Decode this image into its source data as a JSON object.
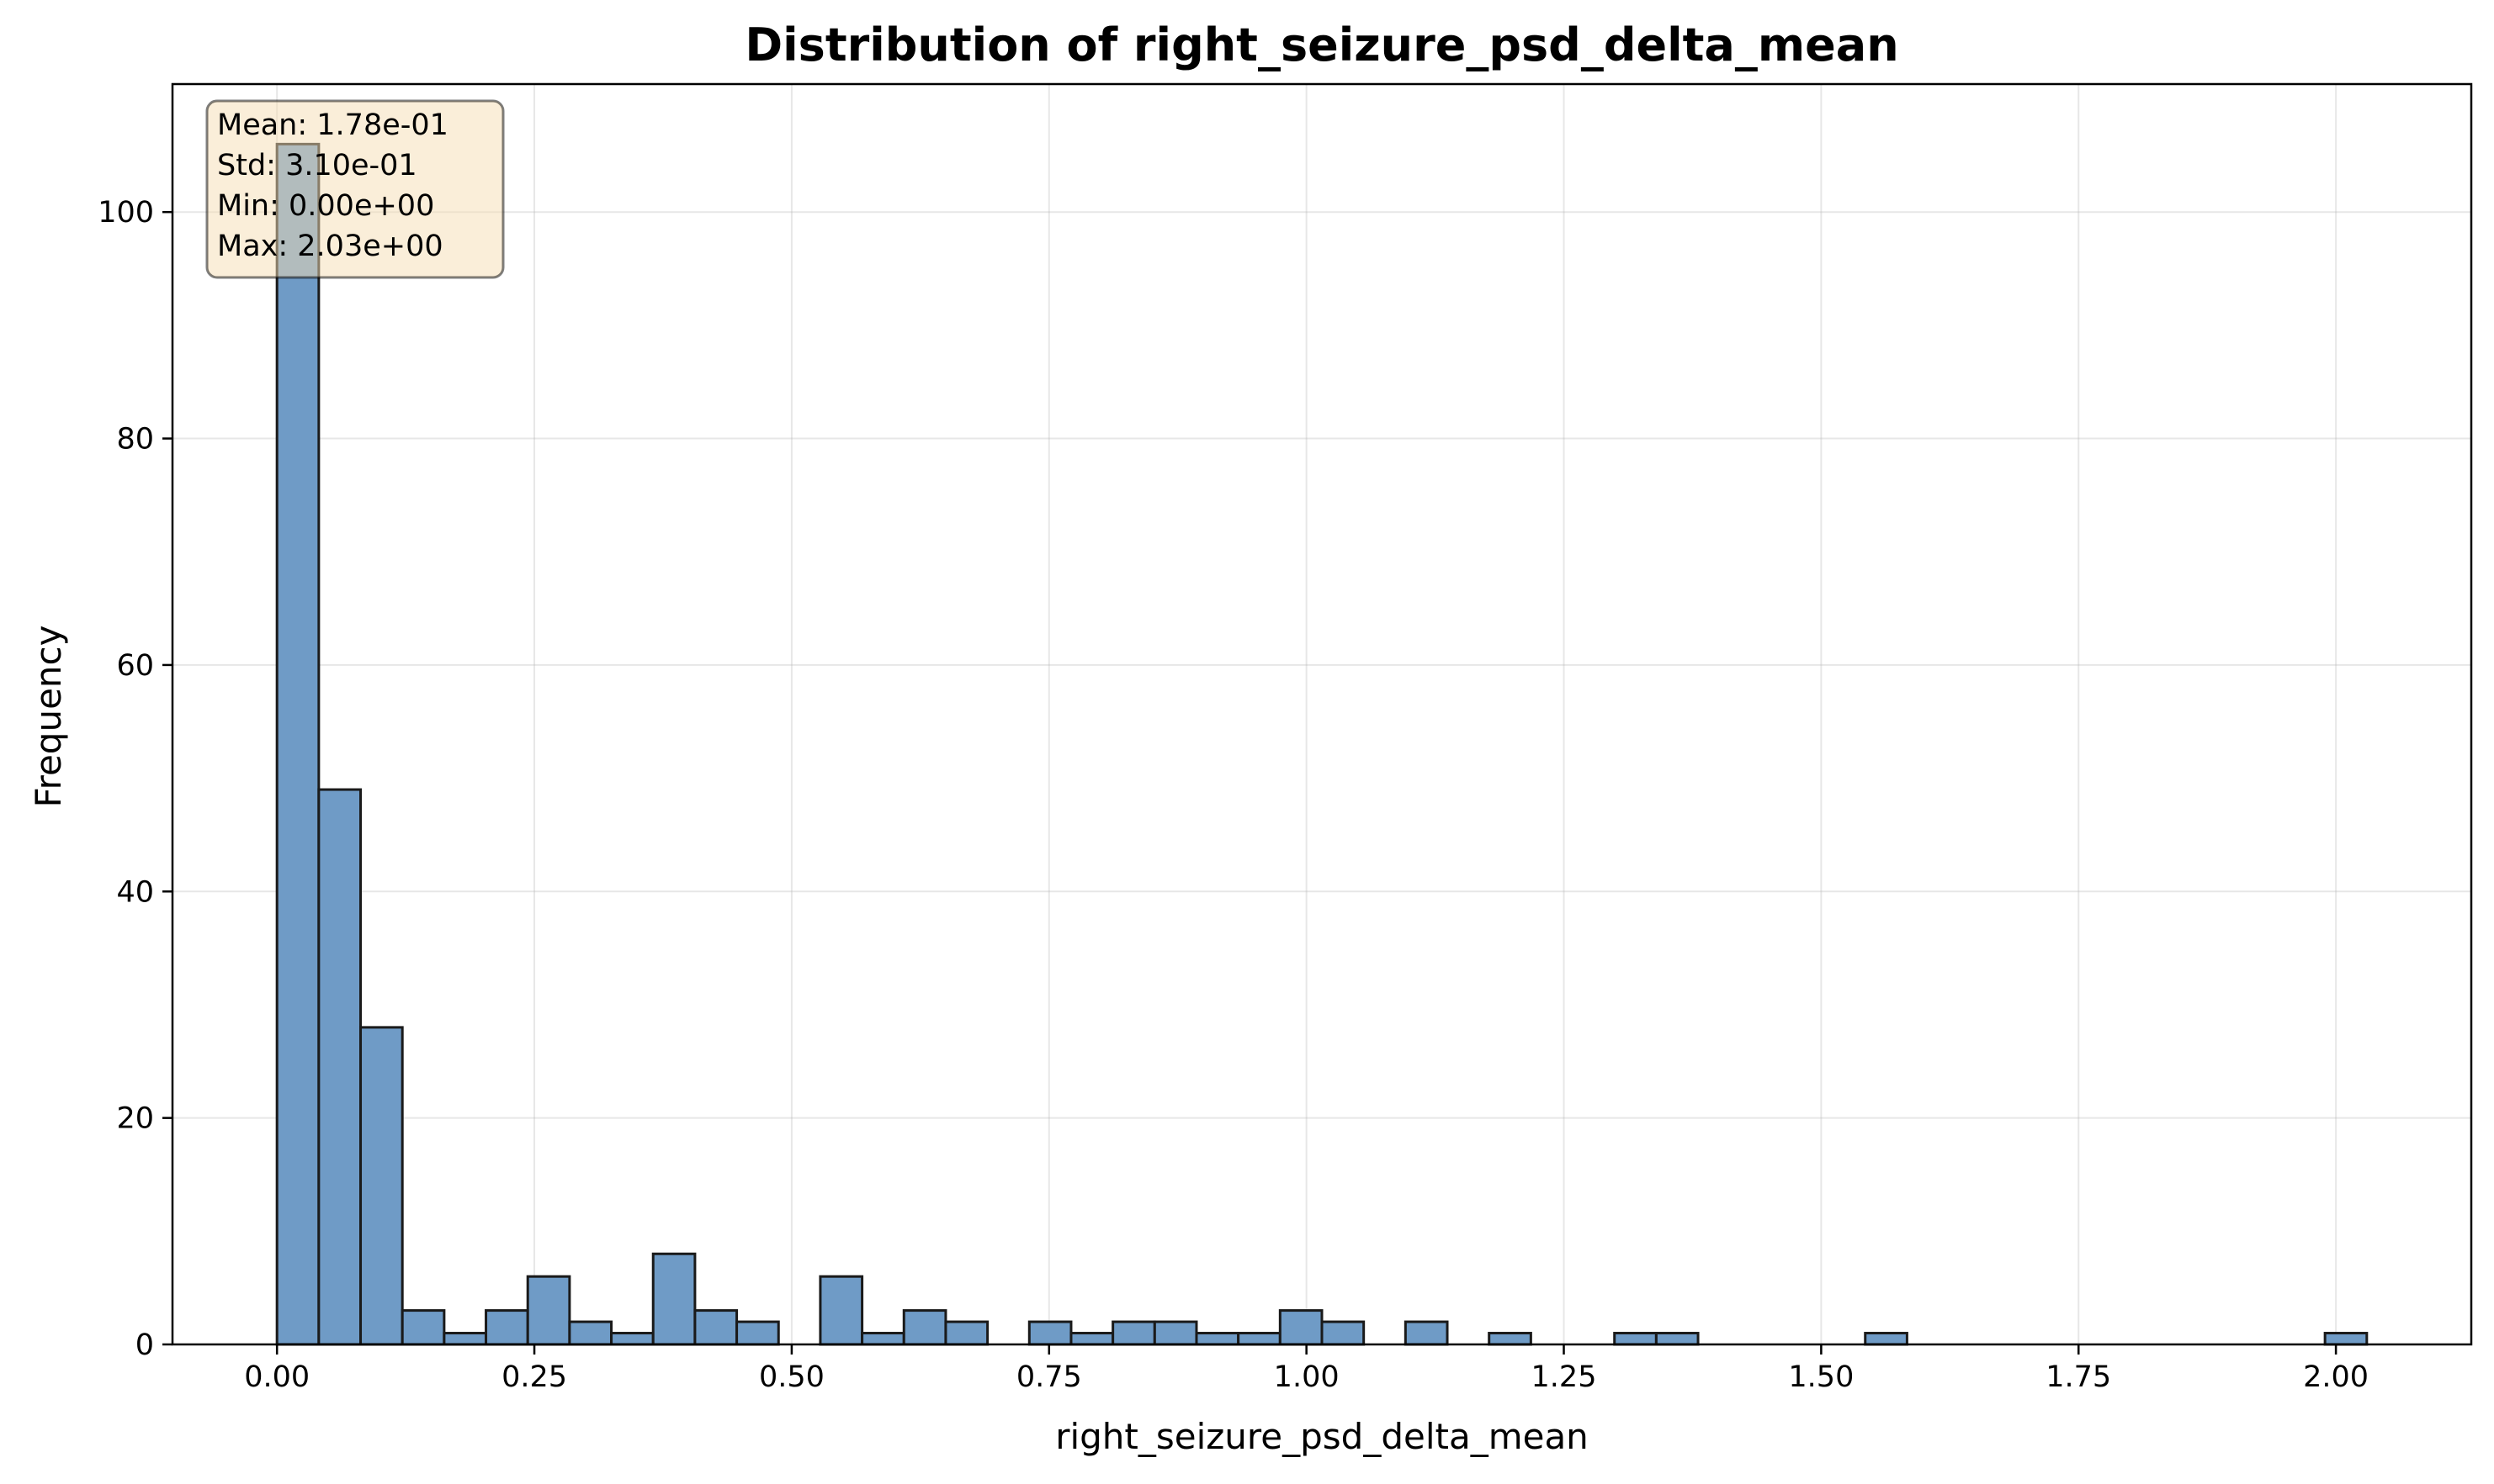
{
  "chart_data": {
    "type": "bar",
    "title": "Distribution of right_seizure_psd_delta_mean",
    "xlabel": "right_seizure_psd_delta_mean",
    "ylabel": "Frequency",
    "xlim": [
      -0.1015,
      2.1315
    ],
    "ylim": [
      0,
      111.3
    ],
    "xticks": [
      0.0,
      0.25,
      0.5,
      0.75,
      1.0,
      1.25,
      1.5,
      1.75,
      2.0
    ],
    "xtick_labels": [
      "0.00",
      "0.25",
      "0.50",
      "0.75",
      "1.00",
      "1.25",
      "1.50",
      "1.75",
      "2.00"
    ],
    "yticks": [
      0,
      20,
      40,
      60,
      80,
      100
    ],
    "ytick_labels": [
      "0",
      "20",
      "40",
      "60",
      "80",
      "100"
    ],
    "grid": true,
    "bin_start": 0.0,
    "bin_width": 0.0406,
    "values": [
      106,
      49,
      28,
      3,
      1,
      3,
      6,
      2,
      1,
      8,
      3,
      2,
      0,
      6,
      1,
      3,
      2,
      0,
      2,
      1,
      2,
      2,
      1,
      1,
      3,
      2,
      0,
      2,
      0,
      1,
      0,
      0,
      1,
      1,
      0,
      0,
      0,
      0,
      1,
      0,
      0,
      0,
      0,
      0,
      0,
      0,
      0,
      0,
      0,
      1
    ],
    "bar_color": "#6f9bc6",
    "edge_color": "#1a1a1a",
    "stats_box": {
      "lines": [
        "Mean: 1.78e-01",
        "Std: 3.10e-01",
        "Min: 0.00e+00",
        "Max: 2.03e+00"
      ],
      "position": "top-left",
      "background": "#f5deb3"
    }
  }
}
